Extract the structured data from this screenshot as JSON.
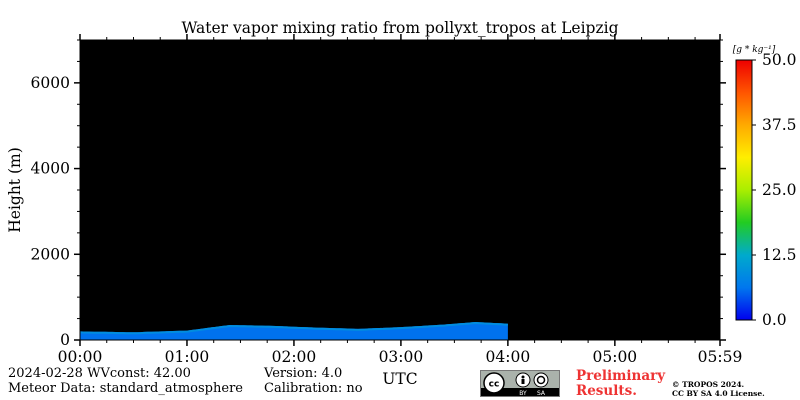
{
  "chart_data": {
    "type": "heatmap",
    "title": "Water vapor mixing ratio from pollyxt_tropos at Leipzig",
    "xlabel": "UTC",
    "ylabel": "Height (m)",
    "x_ticks": [
      "00:00",
      "01:00",
      "02:00",
      "03:00",
      "04:00",
      "05:00",
      "05:59"
    ],
    "x_tick_hours": [
      0,
      1,
      2,
      3,
      4,
      5,
      5.983
    ],
    "xlim_hours": [
      0,
      5.983
    ],
    "y_ticks": [
      "0",
      "2000",
      "4000",
      "6000"
    ],
    "y_tick_values": [
      0,
      2000,
      4000,
      6000
    ],
    "ylim": [
      0,
      7000
    ],
    "background_color": "#000000",
    "colorbar": {
      "unit": "[g * kg⁻¹]",
      "ticks": [
        "0.0",
        "12.5",
        "25.0",
        "37.5",
        "50.0"
      ],
      "tick_values": [
        0,
        12.5,
        25,
        37.5,
        50
      ],
      "range": [
        0,
        50
      ],
      "colors": [
        "#0000ee",
        "#0077ee",
        "#00aacc",
        "#22cc22",
        "#aaee00",
        "#ffee00",
        "#ffaa00",
        "#ff5500",
        "#ee0000"
      ]
    },
    "data_extent_hours": [
      0,
      4.0
    ],
    "layer_top_profile": [
      {
        "t": 0.0,
        "h": 200
      },
      {
        "t": 0.5,
        "h": 180
      },
      {
        "t": 1.0,
        "h": 220
      },
      {
        "t": 1.4,
        "h": 350
      },
      {
        "t": 1.8,
        "h": 330
      },
      {
        "t": 2.2,
        "h": 290
      },
      {
        "t": 2.6,
        "h": 260
      },
      {
        "t": 3.0,
        "h": 300
      },
      {
        "t": 3.4,
        "h": 360
      },
      {
        "t": 3.7,
        "h": 420
      },
      {
        "t": 4.0,
        "h": 380
      }
    ],
    "layer_value": 6
  },
  "info": {
    "line1_left": "2024-02-28    WVconst:  42.00",
    "line1_right": "Version: 4.0",
    "line2_left": "Meteor Data: standard_atmosphere",
    "line2_right": "Calibration: no"
  },
  "license": {
    "prelim_line1": "Preliminary",
    "prelim_line2": "Results.",
    "copyright_line1": "© TROPOS 2024.",
    "copyright_line2": "CC BY SA 4.0 License.",
    "badge_by": "BY",
    "badge_sa": "SA",
    "badge_cc": "cc"
  }
}
